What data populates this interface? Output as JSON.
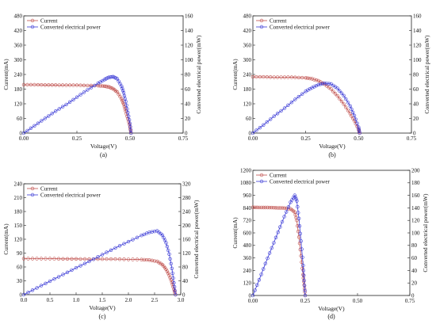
{
  "colors": {
    "current": "#c0504d",
    "power": "#3a3ad6"
  },
  "chart_data": [
    {
      "panel_label": "(a)",
      "type": "line",
      "xlabel": "Voltage(V)",
      "ylabel": "Current(mA)",
      "y2label": "Converted electrical power(mW)",
      "xlim": [
        0,
        0.75
      ],
      "ylim": [
        0,
        480
      ],
      "y2lim": [
        0,
        160
      ],
      "xticks": [
        "0.00",
        "0.25",
        "0.50",
        "0.75"
      ],
      "yticks": [
        "0",
        "60",
        "120",
        "180",
        "240",
        "300",
        "360",
        "420",
        "480"
      ],
      "y2ticks": [
        "0",
        "20",
        "40",
        "60",
        "80",
        "100",
        "120",
        "140",
        "160"
      ],
      "legend": [
        "Current",
        "Converted electrical power"
      ],
      "legend_position": "top-left",
      "series": [
        {
          "name": "Current",
          "axis": "left",
          "x": [
            0,
            0.05,
            0.1,
            0.15,
            0.2,
            0.25,
            0.3,
            0.35,
            0.38,
            0.4,
            0.42,
            0.44,
            0.46,
            0.47,
            0.48,
            0.49,
            0.5,
            0.505
          ],
          "y": [
            198,
            198,
            197,
            197,
            196,
            196,
            195,
            194,
            192,
            189,
            182,
            168,
            140,
            118,
            90,
            58,
            25,
            0
          ]
        },
        {
          "name": "Converted electrical power",
          "axis": "right",
          "x": [
            0,
            0.05,
            0.1,
            0.15,
            0.2,
            0.25,
            0.3,
            0.35,
            0.38,
            0.4,
            0.42,
            0.44,
            0.46,
            0.47,
            0.48,
            0.49,
            0.5,
            0.505
          ],
          "y": [
            0,
            10,
            20,
            30,
            39,
            49,
            59,
            68,
            73,
            76,
            77,
            74,
            64,
            55,
            43,
            28,
            13,
            0
          ]
        }
      ]
    },
    {
      "panel_label": "(b)",
      "type": "line",
      "xlabel": "Voltage(V)",
      "ylabel": "Current(mA)",
      "y2label": "Converted electrical power(mW)",
      "xlim": [
        0,
        0.75
      ],
      "ylim": [
        0,
        480
      ],
      "y2lim": [
        0,
        160
      ],
      "xticks": [
        "0.00",
        "0.25",
        "0.50",
        "0.75"
      ],
      "yticks": [
        "0",
        "60",
        "120",
        "180",
        "240",
        "300",
        "360",
        "420",
        "480"
      ],
      "y2ticks": [
        "0",
        "20",
        "40",
        "60",
        "80",
        "100",
        "120",
        "140",
        "160"
      ],
      "legend": [
        "Current",
        "Converted electrical power"
      ],
      "legend_position": "top-left",
      "series": [
        {
          "name": "Current",
          "axis": "left",
          "x": [
            0,
            0.05,
            0.1,
            0.15,
            0.2,
            0.25,
            0.28,
            0.31,
            0.34,
            0.37,
            0.4,
            0.43,
            0.46,
            0.48,
            0.5,
            0.505
          ],
          "y": [
            230,
            230,
            229,
            229,
            228,
            226,
            222,
            214,
            200,
            180,
            152,
            118,
            80,
            50,
            15,
            0
          ]
        },
        {
          "name": "Converted electrical power",
          "axis": "right",
          "x": [
            0,
            0.05,
            0.1,
            0.15,
            0.2,
            0.25,
            0.28,
            0.31,
            0.34,
            0.37,
            0.4,
            0.43,
            0.46,
            0.48,
            0.5,
            0.505
          ],
          "y": [
            0,
            11,
            23,
            34,
            46,
            57,
            62,
            66,
            68,
            67,
            61,
            51,
            37,
            24,
            8,
            0
          ]
        }
      ]
    },
    {
      "panel_label": "(c)",
      "type": "line",
      "xlabel": "Voltage(V)",
      "ylabel": "Current(mA)",
      "y2label": "Converted electrical power(mW)",
      "xlim": [
        0,
        3.0
      ],
      "ylim": [
        0,
        240
      ],
      "y2lim": [
        0,
        320
      ],
      "xticks": [
        "0.0",
        "0.5",
        "1.0",
        "1.5",
        "2.0",
        "2.5",
        "3.0"
      ],
      "yticks": [
        "0",
        "30",
        "60",
        "90",
        "120",
        "150",
        "180",
        "210",
        "240"
      ],
      "y2ticks": [
        "0",
        "40",
        "80",
        "120",
        "160",
        "200",
        "240",
        "280",
        "320"
      ],
      "legend": [
        "Current",
        "Converted electrical power"
      ],
      "legend_position": "top-left",
      "series": [
        {
          "name": "Current",
          "axis": "left",
          "x": [
            0,
            0.25,
            0.5,
            0.75,
            1.0,
            1.25,
            1.5,
            1.75,
            2.0,
            2.25,
            2.4,
            2.55,
            2.65,
            2.72,
            2.78,
            2.83,
            2.87,
            2.9
          ],
          "y": [
            78,
            78,
            78,
            77.5,
            77.5,
            77,
            77,
            77,
            76.5,
            76,
            75,
            72,
            65,
            55,
            42,
            27,
            12,
            0
          ]
        },
        {
          "name": "Converted electrical power",
          "axis": "right",
          "x": [
            0,
            0.25,
            0.5,
            0.75,
            1.0,
            1.25,
            1.5,
            1.75,
            2.0,
            2.25,
            2.4,
            2.55,
            2.65,
            2.72,
            2.78,
            2.83,
            2.87,
            2.9
          ],
          "y": [
            0,
            19.5,
            39,
            58,
            77.5,
            96,
            115.5,
            135,
            153,
            171,
            180,
            184,
            172,
            150,
            117,
            76,
            34,
            0
          ]
        }
      ]
    },
    {
      "panel_label": "(d)",
      "type": "line",
      "xlabel": "Voltage(V)",
      "ylabel": "Current(mA)",
      "y2label": "Converted electrical power(mW)",
      "xlim": [
        0,
        0.75
      ],
      "ylim": [
        0,
        1200
      ],
      "y2lim": [
        0,
        200
      ],
      "xticks": [
        "0.00",
        "0.25",
        "0.50",
        "0.75"
      ],
      "yticks": [
        "0",
        "120",
        "240",
        "360",
        "480",
        "600",
        "720",
        "840",
        "960",
        "1080",
        "1200"
      ],
      "y2ticks": [
        "0",
        "20",
        "40",
        "60",
        "80",
        "100",
        "120",
        "140",
        "160",
        "180",
        "200"
      ],
      "legend": [
        "Current",
        "Converted electrical power"
      ],
      "legend_position": "top-left",
      "series": [
        {
          "name": "Current",
          "axis": "left",
          "x": [
            0,
            0.03,
            0.06,
            0.09,
            0.12,
            0.15,
            0.18,
            0.2,
            0.21,
            0.22,
            0.23,
            0.24,
            0.245,
            0.25
          ],
          "y": [
            845,
            844,
            843,
            842,
            840,
            838,
            830,
            800,
            720,
            560,
            380,
            200,
            100,
            0
          ]
        },
        {
          "name": "Converted electrical power",
          "axis": "right",
          "x": [
            0,
            0.03,
            0.06,
            0.09,
            0.12,
            0.15,
            0.18,
            0.2,
            0.21,
            0.22,
            0.23,
            0.24,
            0.245,
            0.25
          ],
          "y": [
            0,
            25,
            51,
            76,
            101,
            126,
            149,
            160,
            151,
            123,
            87,
            48,
            24,
            0
          ]
        }
      ]
    }
  ]
}
